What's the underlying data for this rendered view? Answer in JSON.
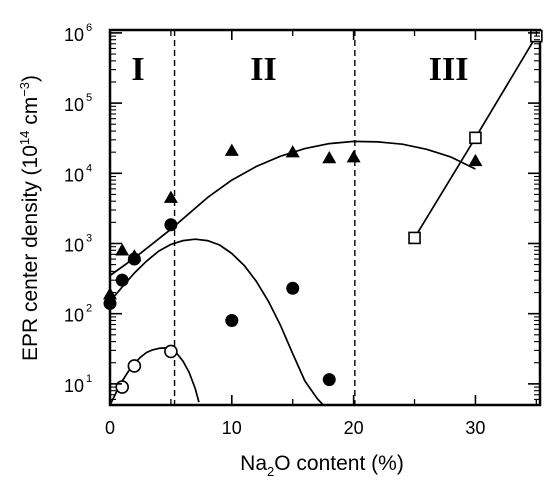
{
  "chart_data": {
    "type": "scatter",
    "xlabel": {
      "pre": "Na",
      "sub": "2",
      "post": "O content (%)"
    },
    "ylabel": {
      "pre": "EPR center density (10",
      "sup1": "14",
      "mid": " cm",
      "sup2": "−3",
      "post": ")"
    },
    "xlim": [
      0,
      35.3
    ],
    "ylim": [
      5,
      1100000
    ],
    "yscale": "log",
    "grid": false,
    "x_ticks": [
      {
        "v": 0,
        "label": "0"
      },
      {
        "v": 10,
        "label": "10"
      },
      {
        "v": 20,
        "label": "20"
      },
      {
        "v": 30,
        "label": "30"
      }
    ],
    "y_ticks": [
      {
        "v": 10,
        "base": "10",
        "exp": "1"
      },
      {
        "v": 100,
        "base": "10",
        "exp": "2"
      },
      {
        "v": 1000,
        "base": "10",
        "exp": "3"
      },
      {
        "v": 10000,
        "base": "10",
        "exp": "4"
      },
      {
        "v": 100000,
        "base": "10",
        "exp": "5"
      },
      {
        "v": 1000000,
        "base": "10",
        "exp": "6"
      }
    ],
    "region_dividers": [
      5.3,
      20.1
    ],
    "regions": [
      {
        "label": "I",
        "x": 2.3
      },
      {
        "label": "II",
        "x": 12.6
      },
      {
        "label": "III",
        "x": 27.8
      }
    ],
    "series": [
      {
        "marker": "triangle",
        "points": [
          [
            0,
            190
          ],
          [
            1,
            800
          ],
          [
            2,
            660
          ],
          [
            5,
            4500
          ],
          [
            10,
            21000
          ],
          [
            15,
            20000
          ],
          [
            18,
            16500
          ],
          [
            20,
            17000
          ],
          [
            30,
            15000
          ]
        ],
        "curve": [
          [
            0,
            350
          ],
          [
            2,
            620
          ],
          [
            5,
            1600
          ],
          [
            8,
            4500
          ],
          [
            10,
            8000
          ],
          [
            12,
            12500
          ],
          [
            14,
            17500
          ],
          [
            16,
            22500
          ],
          [
            18,
            26500
          ],
          [
            20,
            28500
          ],
          [
            22,
            28000
          ],
          [
            24,
            26000
          ],
          [
            26,
            22000
          ],
          [
            28,
            17000
          ],
          [
            30,
            11500
          ]
        ]
      },
      {
        "marker": "circle-filled",
        "points": [
          [
            0,
            140
          ],
          [
            1,
            300
          ],
          [
            2,
            600
          ],
          [
            5,
            1850
          ],
          [
            10,
            80
          ],
          [
            15,
            230
          ],
          [
            18,
            11.5
          ]
        ],
        "curve": [
          [
            0,
            150
          ],
          [
            1,
            240
          ],
          [
            2,
            380
          ],
          [
            3,
            560
          ],
          [
            4,
            780
          ],
          [
            5,
            970
          ],
          [
            6,
            1100
          ],
          [
            7,
            1150
          ],
          [
            8,
            1100
          ],
          [
            9,
            950
          ],
          [
            10,
            720
          ],
          [
            11,
            490
          ],
          [
            12,
            290
          ],
          [
            13,
            150
          ],
          [
            14,
            68
          ],
          [
            15,
            27
          ],
          [
            16,
            11
          ],
          [
            17,
            6.2
          ],
          [
            17.5,
            5
          ]
        ]
      },
      {
        "marker": "circle-open",
        "points": [
          [
            1,
            9
          ],
          [
            2,
            18
          ],
          [
            5,
            29
          ]
        ],
        "curve": [
          [
            0,
            5
          ],
          [
            0.5,
            7.5
          ],
          [
            1,
            11
          ],
          [
            1.5,
            15
          ],
          [
            2,
            19.5
          ],
          [
            2.5,
            24
          ],
          [
            3,
            28
          ],
          [
            3.5,
            30.5
          ],
          [
            4,
            32
          ],
          [
            4.5,
            32.5
          ],
          [
            5,
            31
          ],
          [
            5.5,
            27
          ],
          [
            6,
            21
          ],
          [
            6.5,
            14.5
          ],
          [
            7,
            8.5
          ],
          [
            7.3,
            5.5
          ]
        ]
      },
      {
        "marker": "square-open",
        "points": [
          [
            25,
            1200
          ],
          [
            30,
            32000
          ],
          [
            35,
            900000
          ]
        ],
        "curve": [
          [
            25,
            1200
          ],
          [
            30,
            32000
          ],
          [
            35,
            900000
          ]
        ]
      }
    ]
  }
}
